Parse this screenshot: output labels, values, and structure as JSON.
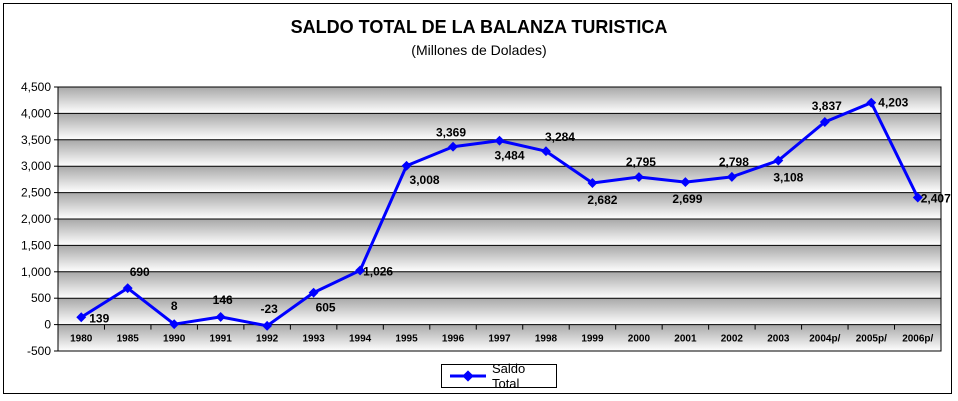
{
  "chart_data": {
    "type": "line",
    "title": "SALDO TOTAL DE LA BALANZA TURISTICA",
    "subtitle": "(Millones de Dolades)",
    "xlabel": "",
    "ylabel": "",
    "ylim": [
      -500,
      4500
    ],
    "yticks": [
      -500,
      0,
      500,
      1000,
      1500,
      2000,
      2500,
      3000,
      3500,
      4000,
      4500
    ],
    "ytick_labels": [
      "-500",
      "0",
      "500",
      "1,000",
      "1,500",
      "2,000",
      "2,500",
      "3,000",
      "3,500",
      "4,000",
      "4,500"
    ],
    "categories": [
      "1980",
      "1985",
      "1990",
      "1991",
      "1992",
      "1993",
      "1994",
      "1995",
      "1996",
      "1997",
      "1998",
      "1999",
      "2000",
      "2001",
      "2002",
      "2003",
      "2004p/",
      "2005p/",
      "2006p/"
    ],
    "series": [
      {
        "name": "Saldo Total",
        "color": "#0000ff",
        "values": [
          139,
          690,
          8,
          146,
          -23,
          605,
          1026,
          3008,
          3369,
          3484,
          3284,
          2682,
          2795,
          2699,
          2798,
          3108,
          3837,
          4203,
          2407
        ],
        "labels": [
          "139",
          "690",
          "8",
          "146",
          "-23",
          "605",
          "1,026",
          "3,008",
          "3,369",
          "3,484",
          "3,284",
          "2,682",
          "2,795",
          "2,699",
          "2,798",
          "3,108",
          "3,837",
          "4,203",
          "2,407"
        ]
      }
    ],
    "grid": true,
    "legend": "bottom-center",
    "plot_fill": "gradient-gray"
  }
}
